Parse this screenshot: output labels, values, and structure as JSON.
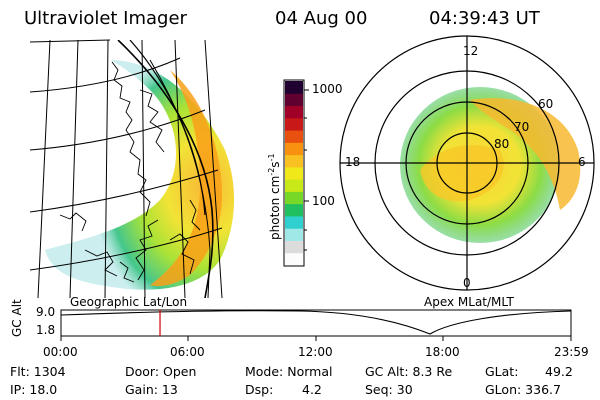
{
  "header": {
    "instrument": "Ultraviolet Imager",
    "date": "04 Aug 00",
    "time": "04:39:43 UT"
  },
  "left_panel": {
    "label": "Geographic Lat/Lon"
  },
  "right_panel": {
    "label": "Apex MLat/MLT",
    "mlt_labels": [
      "12",
      "18",
      "6",
      "0"
    ],
    "lat_labels": [
      "80",
      "70",
      "60"
    ]
  },
  "colorbar": {
    "unit_label": "photon cm",
    "unit_exp1": "-2",
    "unit_mid": "s",
    "unit_exp2": "-1",
    "ticks": [
      "1000",
      "100"
    ],
    "colors": [
      "#fcfcfc",
      "#dcdcdc",
      "#a0e8e8",
      "#30d0d0",
      "#20c060",
      "#78d828",
      "#c8e818",
      "#f0e818",
      "#f8c020",
      "#f89010",
      "#e85010",
      "#c81818",
      "#a00028",
      "#600030",
      "#200030"
    ]
  },
  "altitude_plot": {
    "ylabel": "GC Alt",
    "yticks": [
      "9.0",
      "1.8"
    ],
    "xticks": [
      "00:00",
      "06:00",
      "12:00",
      "18:00",
      "23:59"
    ],
    "current_time_hours": 4.66,
    "marker_color": "#d00000"
  },
  "info": {
    "flt": "Flt: 1304",
    "ip": "IP: 18.0",
    "door": "Door: Open",
    "gain": "Gain: 13",
    "mode": "Mode: Normal",
    "dsp_label": "Dsp:",
    "dsp_value": "4.2",
    "gc_alt": "GC Alt: 8.3 Re",
    "seq": "Seq: 30",
    "glat": "GLat:",
    "glat_value": "49.2",
    "glon": "GLon: 336.7"
  }
}
